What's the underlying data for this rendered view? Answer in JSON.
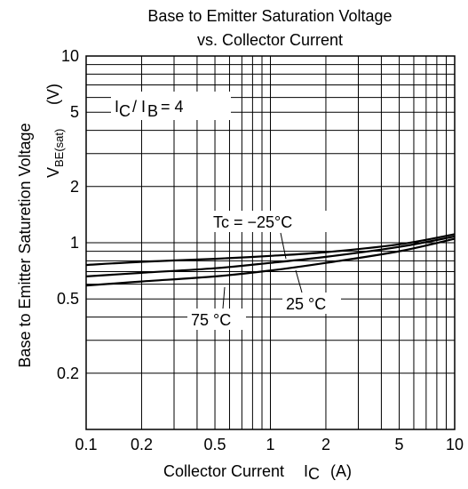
{
  "chart_data": {
    "type": "line",
    "title_line1": "Base to Emitter Saturation Voltage",
    "title_line2": "vs. Collector Current",
    "xlabel": "Collector Current",
    "xlabel_symbol": "I",
    "xlabel_symbol_sub": "C",
    "xlabel_unit": "(A)",
    "ylabel": "Base to Emitter Saturetion Voltage",
    "ylabel_symbol": "V",
    "ylabel_symbol_sub": "BE(sat)",
    "ylabel_unit": "(V)",
    "x_scale": "log",
    "y_scale": "log",
    "xlim": [
      0.1,
      10
    ],
    "ylim": [
      0.1,
      10
    ],
    "grid": true,
    "x_ticks": [
      0.1,
      0.2,
      0.5,
      1,
      2,
      5,
      10
    ],
    "x_tick_labels": [
      "0.1",
      "0.2",
      "0.5",
      "1",
      "2",
      "5",
      "10"
    ],
    "y_ticks": [
      0.2,
      0.5,
      1,
      2,
      5,
      10
    ],
    "y_tick_labels": [
      "0.2",
      "0.5",
      "1",
      "2",
      "5",
      "10"
    ],
    "condition": {
      "i1": "I",
      "i1_sub": "C",
      "sep": "/ I",
      "i2_sub": "B",
      "rest": "= 4"
    },
    "series": [
      {
        "name": "Tc = −25°C",
        "x": [
          0.1,
          0.2,
          0.5,
          1,
          2,
          5,
          10
        ],
        "y": [
          0.76,
          0.79,
          0.82,
          0.85,
          0.89,
          0.98,
          1.11
        ]
      },
      {
        "name": "25 °C",
        "x": [
          0.1,
          0.2,
          0.5,
          1,
          2,
          5,
          10
        ],
        "y": [
          0.66,
          0.69,
          0.73,
          0.78,
          0.84,
          0.95,
          1.08
        ]
      },
      {
        "name": "75 °C",
        "x": [
          0.1,
          0.2,
          0.5,
          1,
          2,
          5,
          10
        ],
        "y": [
          0.59,
          0.62,
          0.66,
          0.71,
          0.78,
          0.9,
          1.05
        ]
      }
    ]
  }
}
